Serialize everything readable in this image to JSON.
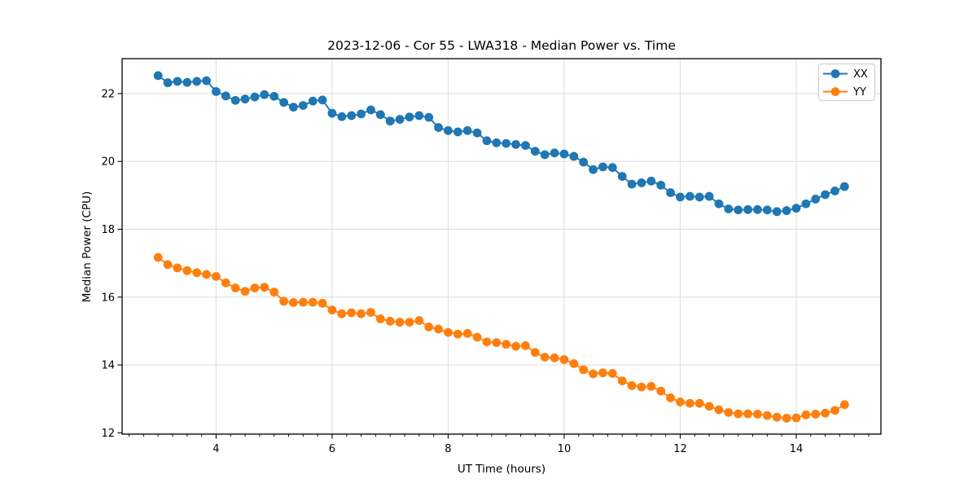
{
  "figure": {
    "background": "#ffffff",
    "grid_color": "#dcdcdc",
    "spine_color": "#000000",
    "tick_color": "#000000",
    "legend_border_color": "#cccccc",
    "legend_background": "#ffffff"
  },
  "chart_data": {
    "type": "line",
    "title": "2023-12-06 - Cor 55 - LWA318 - Median Power vs. Time",
    "xlabel": "UT Time (hours)",
    "ylabel": "Median Power (CPU)",
    "xlim": [
      2.38,
      15.46
    ],
    "ylim": [
      11.96,
      23.03
    ],
    "xticks": [
      4,
      6,
      8,
      10,
      12,
      14
    ],
    "yticks": [
      12,
      14,
      16,
      18,
      20,
      22
    ],
    "x_minor_tick_step": 0.25,
    "grid": true,
    "legend_position": "upper right",
    "marker": "circle",
    "x": [
      3.0,
      3.167,
      3.333,
      3.5,
      3.667,
      3.833,
      4.0,
      4.167,
      4.333,
      4.5,
      4.667,
      4.833,
      5.0,
      5.167,
      5.333,
      5.5,
      5.667,
      5.833,
      6.0,
      6.167,
      6.333,
      6.5,
      6.667,
      6.833,
      7.0,
      7.167,
      7.333,
      7.5,
      7.667,
      7.833,
      8.0,
      8.167,
      8.333,
      8.5,
      8.667,
      8.833,
      9.0,
      9.167,
      9.333,
      9.5,
      9.667,
      9.833,
      10.0,
      10.167,
      10.333,
      10.5,
      10.667,
      10.833,
      11.0,
      11.167,
      11.333,
      11.5,
      11.667,
      11.833,
      12.0,
      12.167,
      12.333,
      12.5,
      12.667,
      12.833,
      13.0,
      13.167,
      13.333,
      13.5,
      13.667,
      13.833,
      14.0,
      14.167,
      14.333,
      14.5,
      14.667,
      14.833
    ],
    "series": [
      {
        "name": "XX",
        "color": "#1f77b4",
        "values": [
          22.53,
          22.32,
          22.36,
          22.33,
          22.36,
          22.38,
          22.06,
          21.93,
          21.8,
          21.84,
          21.9,
          21.97,
          21.92,
          21.74,
          21.6,
          21.65,
          21.78,
          21.81,
          21.42,
          21.32,
          21.35,
          21.4,
          21.52,
          21.38,
          21.19,
          21.24,
          21.31,
          21.35,
          21.3,
          21.0,
          20.91,
          20.87,
          20.91,
          20.84,
          20.61,
          20.55,
          20.53,
          20.5,
          20.47,
          20.3,
          20.2,
          20.25,
          20.22,
          20.15,
          19.98,
          19.76,
          19.84,
          19.82,
          19.56,
          19.33,
          19.37,
          19.42,
          19.3,
          19.08,
          18.95,
          18.97,
          18.95,
          18.97,
          18.75,
          18.6,
          18.57,
          18.58,
          18.58,
          18.57,
          18.52,
          18.55,
          18.62,
          18.75,
          18.89,
          19.02,
          19.13,
          19.26
        ]
      },
      {
        "name": "YY",
        "color": "#ff7f0e",
        "values": [
          17.17,
          16.96,
          16.86,
          16.78,
          16.72,
          16.67,
          16.61,
          16.42,
          16.27,
          16.17,
          16.27,
          16.29,
          16.15,
          15.88,
          15.84,
          15.85,
          15.85,
          15.82,
          15.62,
          15.51,
          15.54,
          15.51,
          15.55,
          15.36,
          15.29,
          15.26,
          15.26,
          15.31,
          15.12,
          15.06,
          14.96,
          14.91,
          14.93,
          14.82,
          14.68,
          14.66,
          14.61,
          14.55,
          14.57,
          14.37,
          14.23,
          14.21,
          14.16,
          14.04,
          13.86,
          13.74,
          13.77,
          13.75,
          13.53,
          13.39,
          13.35,
          13.37,
          13.23,
          13.03,
          12.91,
          12.87,
          12.87,
          12.78,
          12.68,
          12.6,
          12.56,
          12.56,
          12.55,
          12.51,
          12.46,
          12.43,
          12.44,
          12.53,
          12.55,
          12.58,
          12.66,
          12.83
        ]
      }
    ]
  }
}
